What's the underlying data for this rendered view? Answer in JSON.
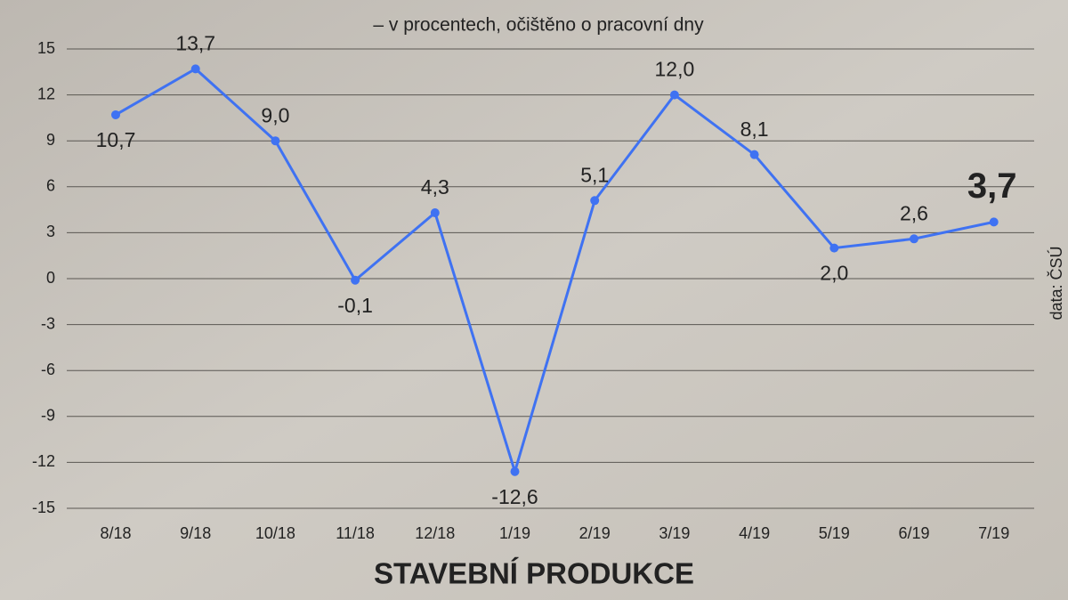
{
  "chart_data": {
    "type": "line",
    "title": "STAVEBNÍ PRODUKCE",
    "subtitle": "– v procentech, očištěno o pracovní dny",
    "source": "data: ČSÚ",
    "categories": [
      "8/18",
      "9/18",
      "10/18",
      "11/18",
      "12/18",
      "1/19",
      "2/19",
      "3/19",
      "4/19",
      "5/19",
      "6/19",
      "7/19"
    ],
    "series": [
      {
        "name": "Stavební produkce",
        "color": "#3f72f2",
        "values": [
          10.7,
          13.7,
          9.0,
          -0.1,
          4.3,
          -12.6,
          5.1,
          12.0,
          8.1,
          2.0,
          2.6,
          3.7
        ],
        "value_labels": [
          "10,7",
          "13,7",
          "9,0",
          "-0,1",
          "4,3",
          "-12,6",
          "5,1",
          "12,0",
          "8,1",
          "2,0",
          "2,6",
          "3,7"
        ]
      }
    ],
    "ylim": [
      -15,
      15
    ],
    "yticks": [
      -15,
      -12,
      -9,
      -6,
      -3,
      0,
      3,
      6,
      9,
      12,
      15
    ],
    "grid": true
  }
}
